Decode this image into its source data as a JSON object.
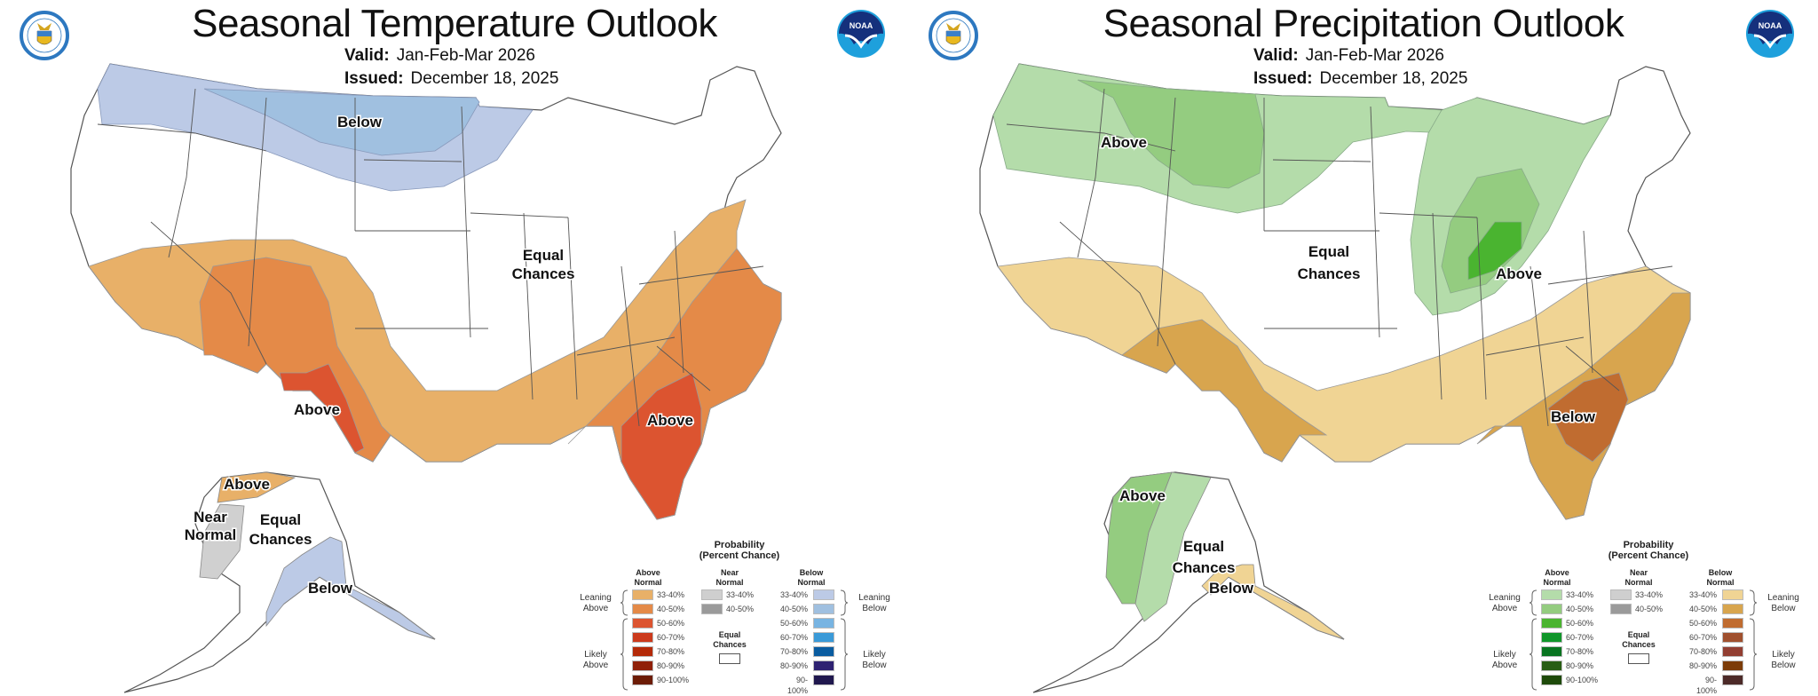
{
  "panels": [
    {
      "id": "temperature",
      "title": "Seasonal Temperature Outlook",
      "valid_label": "Valid:",
      "valid_value": "Jan-Feb-Mar 2026",
      "issued_label": "Issued:",
      "issued_value": "December 18, 2025",
      "logos": {
        "left": "Department of Commerce seal",
        "right": "NOAA",
        "noaa_text": "NOAA"
      },
      "map_labels": {
        "below_north": "Below",
        "equal_chances_1": "Equal",
        "equal_chances_2": "Chances",
        "above_sw": "Above",
        "above_se": "Above",
        "ak_above": "Above",
        "ak_near_1": "Near",
        "ak_near_2": "Normal",
        "ak_equal_1": "Equal",
        "ak_equal_2": "Chances",
        "ak_below": "Below"
      },
      "region_colors": {
        "below_33_40": "#bccae6",
        "below_40_50": "#a0c0e0",
        "above_33_40": "#e8b068",
        "above_40_50": "#e48a48",
        "above_50_60": "#dc5430",
        "near_33_40": "#d0d0d0"
      },
      "legend": {
        "title_1": "Probability",
        "title_2": "(Percent Chance)",
        "above_head_1": "Above",
        "above_head_2": "Normal",
        "near_head_1": "Near",
        "near_head_2": "Normal",
        "below_head_1": "Below",
        "below_head_2": "Normal",
        "leaning_above_1": "Leaning",
        "leaning_above_2": "Above",
        "likely_above_1": "Likely",
        "likely_above_2": "Above",
        "leaning_below_1": "Leaning",
        "leaning_below_2": "Below",
        "likely_below_1": "Likely",
        "likely_below_2": "Below",
        "equal_1": "Equal",
        "equal_2": "Chances",
        "above": [
          {
            "label": "33-40%",
            "color": "#e8b068"
          },
          {
            "label": "40-50%",
            "color": "#e48a48"
          },
          {
            "label": "50-60%",
            "color": "#dc5430"
          },
          {
            "label": "60-70%",
            "color": "#cc3a1c"
          },
          {
            "label": "70-80%",
            "color": "#b42a08"
          },
          {
            "label": "80-90%",
            "color": "#902008"
          },
          {
            "label": "90-100%",
            "color": "#6c1c06"
          }
        ],
        "near": [
          {
            "label": "33-40%",
            "color": "#cfcfcf"
          },
          {
            "label": "40-50%",
            "color": "#9a9a9a"
          }
        ],
        "below": [
          {
            "label": "33-40%",
            "color": "#bccae6"
          },
          {
            "label": "40-50%",
            "color": "#a0c0e0"
          },
          {
            "label": "50-60%",
            "color": "#78b4e2"
          },
          {
            "label": "60-70%",
            "color": "#3a9ad8"
          },
          {
            "label": "70-80%",
            "color": "#0a5ca0"
          },
          {
            "label": "80-90%",
            "color": "#2e2272"
          },
          {
            "label": "90-100%",
            "color": "#20184e"
          }
        ]
      }
    },
    {
      "id": "precipitation",
      "title": "Seasonal Precipitation Outlook",
      "valid_label": "Valid:",
      "valid_value": "Jan-Feb-Mar 2026",
      "issued_label": "Issued:",
      "issued_value": "December 18, 2025",
      "logos": {
        "left": "Department of Commerce seal",
        "right": "NOAA",
        "noaa_text": "NOAA"
      },
      "map_labels": {
        "above_north": "Above",
        "equal_chances_1": "Equal",
        "equal_chances_2": "Chances",
        "above_ohio": "Above",
        "below_se": "Below",
        "ak_above": "Above",
        "ak_equal_1": "Equal",
        "ak_equal_2": "Chances",
        "ak_below": "Below"
      },
      "region_colors": {
        "above_33_40": "#b4dcaa",
        "above_40_50": "#94cc80",
        "above_50_60": "#4ab430",
        "below_33_40": "#f0d494",
        "below_40_50": "#d8a54e",
        "below_50_60": "#c06c30"
      },
      "legend": {
        "title_1": "Probability",
        "title_2": "(Percent Chance)",
        "above_head_1": "Above",
        "above_head_2": "Normal",
        "near_head_1": "Near",
        "near_head_2": "Normal",
        "below_head_1": "Below",
        "below_head_2": "Normal",
        "leaning_above_1": "Leaning",
        "leaning_above_2": "Above",
        "likely_above_1": "Likely",
        "likely_above_2": "Above",
        "leaning_below_1": "Leaning",
        "leaning_below_2": "Below",
        "likely_below_1": "Likely",
        "likely_below_2": "Below",
        "equal_1": "Equal",
        "equal_2": "Chances",
        "above": [
          {
            "label": "33-40%",
            "color": "#b4dcaa"
          },
          {
            "label": "40-50%",
            "color": "#94cc80"
          },
          {
            "label": "50-60%",
            "color": "#4ab430"
          },
          {
            "label": "60-70%",
            "color": "#10962a"
          },
          {
            "label": "70-80%",
            "color": "#087420"
          },
          {
            "label": "80-90%",
            "color": "#285e14"
          },
          {
            "label": "90-100%",
            "color": "#1e4a0a"
          }
        ],
        "near": [
          {
            "label": "33-40%",
            "color": "#cfcfcf"
          },
          {
            "label": "40-50%",
            "color": "#9a9a9a"
          }
        ],
        "below": [
          {
            "label": "33-40%",
            "color": "#f0d494"
          },
          {
            "label": "40-50%",
            "color": "#d8a54e"
          },
          {
            "label": "50-60%",
            "color": "#c06c30"
          },
          {
            "label": "60-70%",
            "color": "#a0502e"
          },
          {
            "label": "70-80%",
            "color": "#923e32"
          },
          {
            "label": "80-90%",
            "color": "#7c3c08"
          },
          {
            "label": "90-100%",
            "color": "#4c2a28"
          }
        ]
      }
    }
  ]
}
